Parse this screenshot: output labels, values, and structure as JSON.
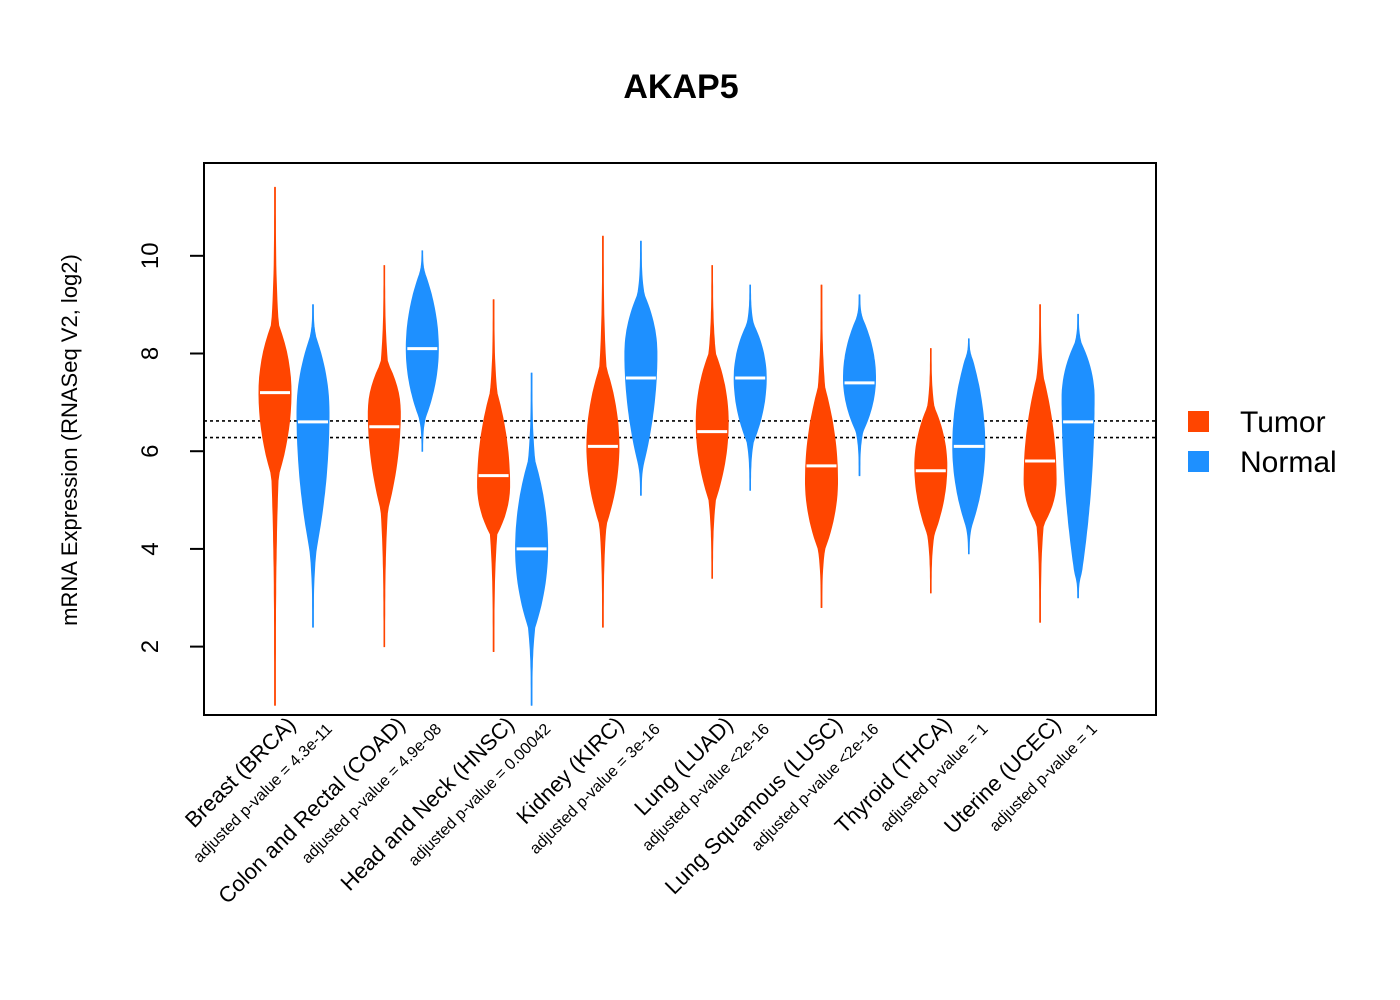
{
  "chart_data": {
    "type": "violin",
    "title": "AKAP5",
    "ylabel": "mRNA Expression (RNASeq V2, log2)",
    "xlabel": "",
    "ylim": [
      0.6,
      11.9
    ],
    "yticks": [
      2,
      4,
      6,
      8,
      10
    ],
    "reference_lines": [
      6.62,
      6.28
    ],
    "colors": {
      "tumor": "#FF4500",
      "normal": "#1E90FF"
    },
    "legend": {
      "position": "right",
      "entries": [
        {
          "name": "Tumor",
          "color": "#FF4500"
        },
        {
          "name": "Normal",
          "color": "#1E90FF"
        }
      ]
    },
    "categories": [
      "Breast (BRCA)",
      "Colon and Rectal (COAD)",
      "Head and Neck (HNSC)",
      "Kidney (KIRC)",
      "Lung (LUAD)",
      "Lung Squamous (LUSC)",
      "Thyroid (THCA)",
      "Uterine (UCEC)"
    ],
    "pvalues": [
      "adjusted p-value = 4.3e-11",
      "adjusted p-value = 4.9e-08",
      "adjusted p-value = 0.00042",
      "adjusted p-value = 3e-16",
      "adjusted p-value <2e-16",
      "adjusted p-value <2e-16",
      "adjusted p-value = 1",
      "adjusted p-value = 1"
    ],
    "series": [
      {
        "name": "Tumor",
        "color": "#FF4500",
        "values": [
          {
            "min": 0.8,
            "max": 11.4,
            "median": 7.2,
            "lo": 5.5,
            "hi": 8.6,
            "peak": 7.2
          },
          {
            "min": 2.0,
            "max": 9.8,
            "median": 6.5,
            "lo": 4.8,
            "hi": 7.8,
            "peak": 6.8
          },
          {
            "min": 1.9,
            "max": 9.1,
            "median": 5.5,
            "lo": 4.3,
            "hi": 7.2,
            "peak": 5.3
          },
          {
            "min": 2.4,
            "max": 10.4,
            "median": 6.1,
            "lo": 4.5,
            "hi": 7.7,
            "peak": 6.1
          },
          {
            "min": 3.4,
            "max": 9.8,
            "median": 6.4,
            "lo": 5.0,
            "hi": 8.0,
            "peak": 6.6
          },
          {
            "min": 2.8,
            "max": 9.4,
            "median": 5.7,
            "lo": 4.0,
            "hi": 7.3,
            "peak": 5.4
          },
          {
            "min": 3.1,
            "max": 8.1,
            "median": 5.6,
            "lo": 4.3,
            "hi": 6.9,
            "peak": 5.7
          },
          {
            "min": 2.5,
            "max": 9.0,
            "median": 5.8,
            "lo": 4.5,
            "hi": 7.5,
            "peak": 5.4
          }
        ]
      },
      {
        "name": "Normal",
        "color": "#1E90FF",
        "values": [
          {
            "min": 2.4,
            "max": 9.0,
            "median": 6.6,
            "lo": 4.0,
            "hi": 8.3,
            "peak": 6.8
          },
          {
            "min": 6.0,
            "max": 10.1,
            "median": 8.1,
            "lo": 6.7,
            "hi": 9.6,
            "peak": 8.1
          },
          {
            "min": 0.8,
            "max": 7.6,
            "median": 4.0,
            "lo": 2.4,
            "hi": 5.8,
            "peak": 4.0
          },
          {
            "min": 5.1,
            "max": 10.3,
            "median": 7.5,
            "lo": 5.8,
            "hi": 9.2,
            "peak": 8.0
          },
          {
            "min": 5.2,
            "max": 9.4,
            "median": 7.5,
            "lo": 6.2,
            "hi": 8.6,
            "peak": 7.5
          },
          {
            "min": 5.5,
            "max": 9.2,
            "median": 7.4,
            "lo": 6.4,
            "hi": 8.7,
            "peak": 7.5
          },
          {
            "min": 3.9,
            "max": 8.3,
            "median": 6.1,
            "lo": 4.5,
            "hi": 7.9,
            "peak": 6.1
          },
          {
            "min": 3.0,
            "max": 8.8,
            "median": 6.6,
            "lo": 3.5,
            "hi": 8.2,
            "peak": 7.1
          }
        ]
      }
    ]
  }
}
